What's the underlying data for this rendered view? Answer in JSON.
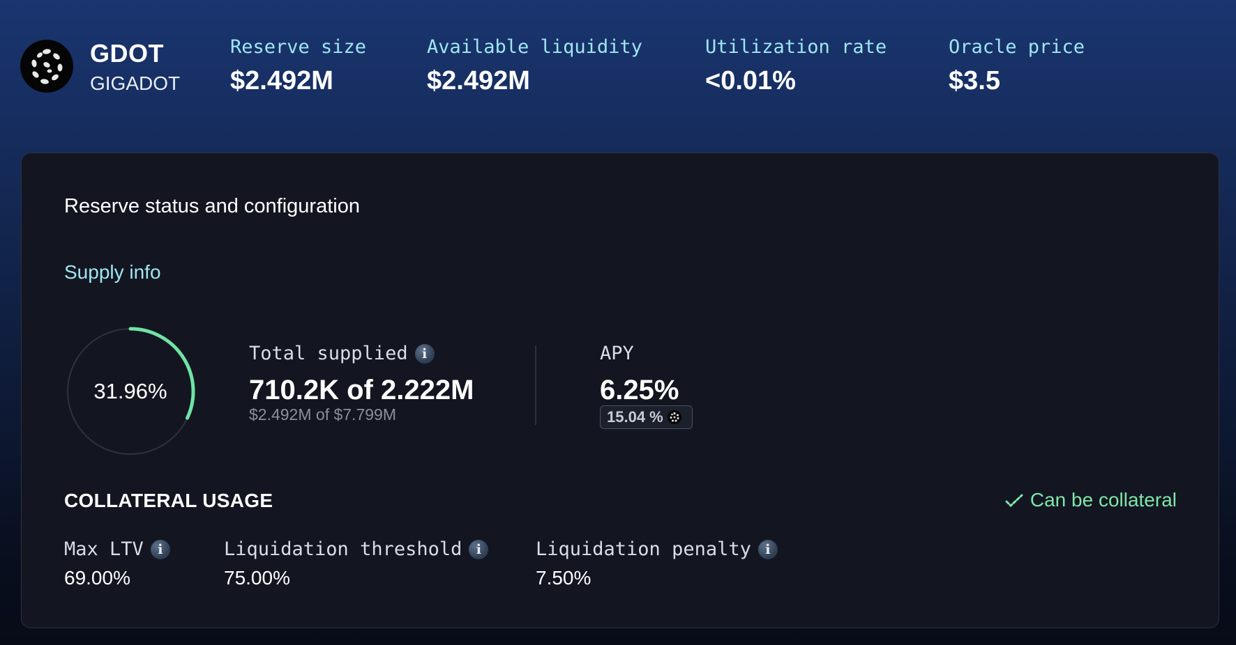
{
  "token": {
    "symbol": "GDOT",
    "name": "GIGADOT",
    "icon": "gigadot-logo-icon"
  },
  "stats": {
    "reserve_size": {
      "label": "Reserve size",
      "value": "$2.492M"
    },
    "available_liquidity": {
      "label": "Available liquidity",
      "value": "$2.492M"
    },
    "utilization_rate": {
      "label": "Utilization rate",
      "value": "<0.01%"
    },
    "oracle_price": {
      "label": "Oracle price",
      "value": "$3.5"
    }
  },
  "card": {
    "title": "Reserve status and configuration",
    "supply_info": {
      "heading": "Supply info",
      "ring_percent_label": "31.96%",
      "ring_fraction": 0.3196,
      "total_supplied_label": "Total supplied",
      "total_supplied_value": "710.2K of 2.222M",
      "total_supplied_usd": "$2.492M of $7.799M",
      "apy_label": "APY",
      "apy_value": "6.25%",
      "apy_incentive": "15.04 %"
    },
    "collateral": {
      "heading": "COLLATERAL USAGE",
      "status": "Can be collateral",
      "max_ltv": {
        "label": "Max LTV",
        "value": "69.00%"
      },
      "liq_threshold": {
        "label": "Liquidation threshold",
        "value": "75.00%"
      },
      "liq_penalty": {
        "label": "Liquidation penalty",
        "value": "7.50%"
      }
    }
  },
  "colors": {
    "accent_label": "#9fe6f2",
    "ring_progress": "#6fe3a5",
    "status_green": "#7ee6a9",
    "card_bg": "#131621"
  }
}
